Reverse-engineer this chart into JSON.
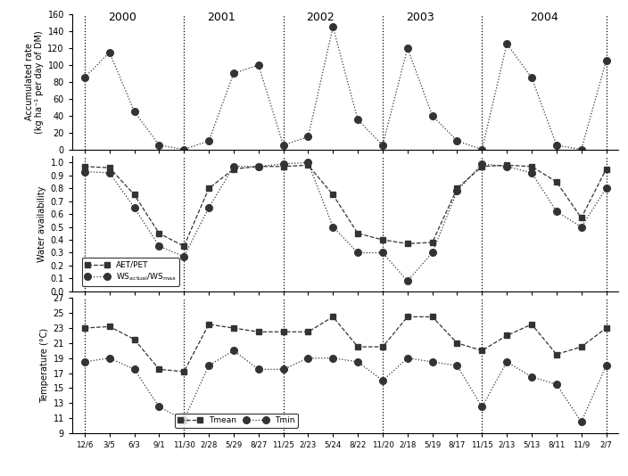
{
  "x_labels": [
    "12/6",
    "3/5",
    "6/3",
    "9/1",
    "11/30",
    "2/28",
    "5/29",
    "8/27",
    "11/25",
    "2/23",
    "5/24",
    "8/22",
    "11/20",
    "2/18",
    "5/19",
    "8/17",
    "11/15",
    "2/13",
    "5/13",
    "8/11",
    "11/9",
    "2/7"
  ],
  "year_labels": [
    "2000",
    "2001",
    "2002",
    "2003",
    "2004"
  ],
  "year_x_positions": [
    1.5,
    5.5,
    9.5,
    13.5,
    18.5
  ],
  "vline_positions": [
    0,
    4,
    8,
    12,
    16,
    21
  ],
  "dm_data": [
    85,
    115,
    45,
    5,
    0,
    10,
    90,
    100,
    5,
    15,
    145,
    35,
    5,
    120,
    40,
    10,
    0,
    125,
    85,
    5,
    0,
    105
  ],
  "aet_pet": [
    0.97,
    0.96,
    0.75,
    0.45,
    0.35,
    0.8,
    0.95,
    0.97,
    0.97,
    0.98,
    0.75,
    0.45,
    0.4,
    0.37,
    0.38,
    0.8,
    0.97,
    0.98,
    0.97,
    0.85,
    0.57,
    0.95
  ],
  "ws_ratio": [
    0.93,
    0.92,
    0.65,
    0.35,
    0.27,
    0.65,
    0.97,
    0.97,
    0.99,
    1.0,
    0.5,
    0.3,
    0.3,
    0.08,
    0.3,
    0.78,
    0.99,
    0.97,
    0.92,
    0.62,
    0.5,
    0.8
  ],
  "tmean": [
    23.0,
    23.2,
    21.5,
    17.5,
    17.2,
    23.5,
    23.0,
    22.5,
    22.5,
    22.5,
    24.5,
    20.5,
    20.5,
    24.5,
    24.5,
    21.0,
    20.0,
    22.0,
    23.5,
    19.5,
    20.5,
    23.0
  ],
  "tmin": [
    18.5,
    19.0,
    17.5,
    12.5,
    10.8,
    18.0,
    20.0,
    17.5,
    17.5,
    19.0,
    19.0,
    18.5,
    16.0,
    19.0,
    18.5,
    18.0,
    12.5,
    18.5,
    16.5,
    15.5,
    10.5,
    18.0
  ],
  "dm_ylim": [
    0,
    160
  ],
  "dm_yticks": [
    0,
    20,
    40,
    60,
    80,
    100,
    120,
    140,
    160
  ],
  "wa_yticks": [
    0.0,
    0.1,
    0.2,
    0.3,
    0.4,
    0.5,
    0.6,
    0.7,
    0.8,
    0.9,
    1.0
  ],
  "temp_ylim": [
    9,
    27
  ],
  "temp_yticks": [
    9,
    11,
    13,
    15,
    17,
    19,
    21,
    23,
    25,
    27
  ],
  "dm_ylabel": "Accumulated rate\n(kg ha⁻¹ per day of DM)",
  "wa_ylabel": "Water availability",
  "temp_ylabel": "Temperature (°C)"
}
